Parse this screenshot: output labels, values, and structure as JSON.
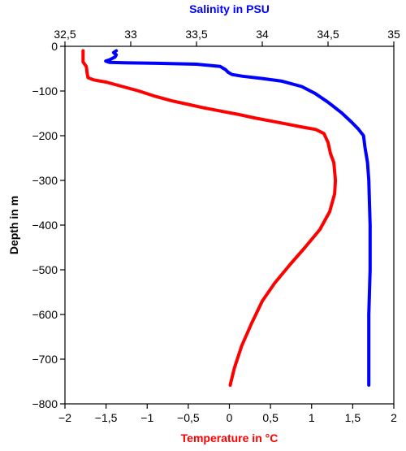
{
  "chart_data": {
    "type": "line",
    "title": "",
    "top_axis": {
      "label": "Salinity in PSU",
      "color": "#0000ff",
      "range": [
        32.5,
        35
      ],
      "ticks": [
        32.5,
        33,
        33.5,
        34,
        34.5,
        35
      ],
      "tick_labels": [
        "32,5",
        "33",
        "33,5",
        "34",
        "34,5",
        "35"
      ]
    },
    "bottom_axis": {
      "label": "Temperature in °C",
      "color": "#ff0000",
      "range": [
        -2,
        2
      ],
      "ticks": [
        -2,
        -1.5,
        -1,
        -0.5,
        0,
        0.5,
        1,
        1.5,
        2
      ],
      "tick_labels": [
        "−2",
        "−1,5",
        "−1",
        "−0,5",
        "0",
        "0,5",
        "1",
        "1,5",
        "2"
      ]
    },
    "y_axis": {
      "label": "Depth in m",
      "range": [
        -800,
        0
      ],
      "ticks": [
        0,
        -100,
        -200,
        -300,
        -400,
        -500,
        -600,
        -700,
        -800
      ],
      "tick_labels": [
        "0",
        "−100",
        "−200",
        "−300",
        "−400",
        "−500",
        "−600",
        "−700",
        "−800"
      ]
    },
    "grid": false,
    "series": [
      {
        "name": "Salinity in PSU",
        "axis": "top",
        "color": "#0000ff",
        "points": [
          [
            32.89,
            -10
          ],
          [
            32.87,
            -14
          ],
          [
            32.89,
            -19
          ],
          [
            32.88,
            -24
          ],
          [
            32.84,
            -30
          ],
          [
            32.81,
            -33
          ],
          [
            32.84,
            -36
          ],
          [
            32.95,
            -37
          ],
          [
            33.2,
            -38
          ],
          [
            33.5,
            -40
          ],
          [
            33.68,
            -45
          ],
          [
            33.72,
            -52
          ],
          [
            33.74,
            -58
          ],
          [
            33.77,
            -63
          ],
          [
            33.85,
            -67
          ],
          [
            34.0,
            -72
          ],
          [
            34.15,
            -78
          ],
          [
            34.3,
            -90
          ],
          [
            34.4,
            -105
          ],
          [
            34.5,
            -125
          ],
          [
            34.6,
            -148
          ],
          [
            34.68,
            -170
          ],
          [
            34.73,
            -185
          ],
          [
            34.77,
            -200
          ],
          [
            34.78,
            -225
          ],
          [
            34.8,
            -260
          ],
          [
            34.81,
            -300
          ],
          [
            34.82,
            -400
          ],
          [
            34.82,
            -500
          ],
          [
            34.81,
            -600
          ],
          [
            34.81,
            -700
          ],
          [
            34.81,
            -758
          ]
        ]
      },
      {
        "name": "Temperature in °C",
        "axis": "bottom",
        "color": "#ff0000",
        "points": [
          [
            -1.78,
            -10
          ],
          [
            -1.78,
            -35
          ],
          [
            -1.74,
            -45
          ],
          [
            -1.73,
            -60
          ],
          [
            -1.72,
            -70
          ],
          [
            -1.65,
            -75
          ],
          [
            -1.5,
            -80
          ],
          [
            -1.3,
            -90
          ],
          [
            -1.1,
            -100
          ],
          [
            -0.9,
            -112
          ],
          [
            -0.7,
            -122
          ],
          [
            -0.5,
            -130
          ],
          [
            -0.3,
            -138
          ],
          [
            -0.1,
            -145
          ],
          [
            0.1,
            -152
          ],
          [
            0.3,
            -160
          ],
          [
            0.5,
            -167
          ],
          [
            0.7,
            -174
          ],
          [
            0.9,
            -181
          ],
          [
            1.05,
            -186
          ],
          [
            1.15,
            -195
          ],
          [
            1.2,
            -215
          ],
          [
            1.23,
            -240
          ],
          [
            1.27,
            -260
          ],
          [
            1.29,
            -300
          ],
          [
            1.28,
            -330
          ],
          [
            1.22,
            -370
          ],
          [
            1.1,
            -410
          ],
          [
            0.92,
            -450
          ],
          [
            0.73,
            -490
          ],
          [
            0.55,
            -530
          ],
          [
            0.4,
            -570
          ],
          [
            0.27,
            -620
          ],
          [
            0.15,
            -670
          ],
          [
            0.06,
            -720
          ],
          [
            0.01,
            -758
          ]
        ]
      }
    ]
  }
}
